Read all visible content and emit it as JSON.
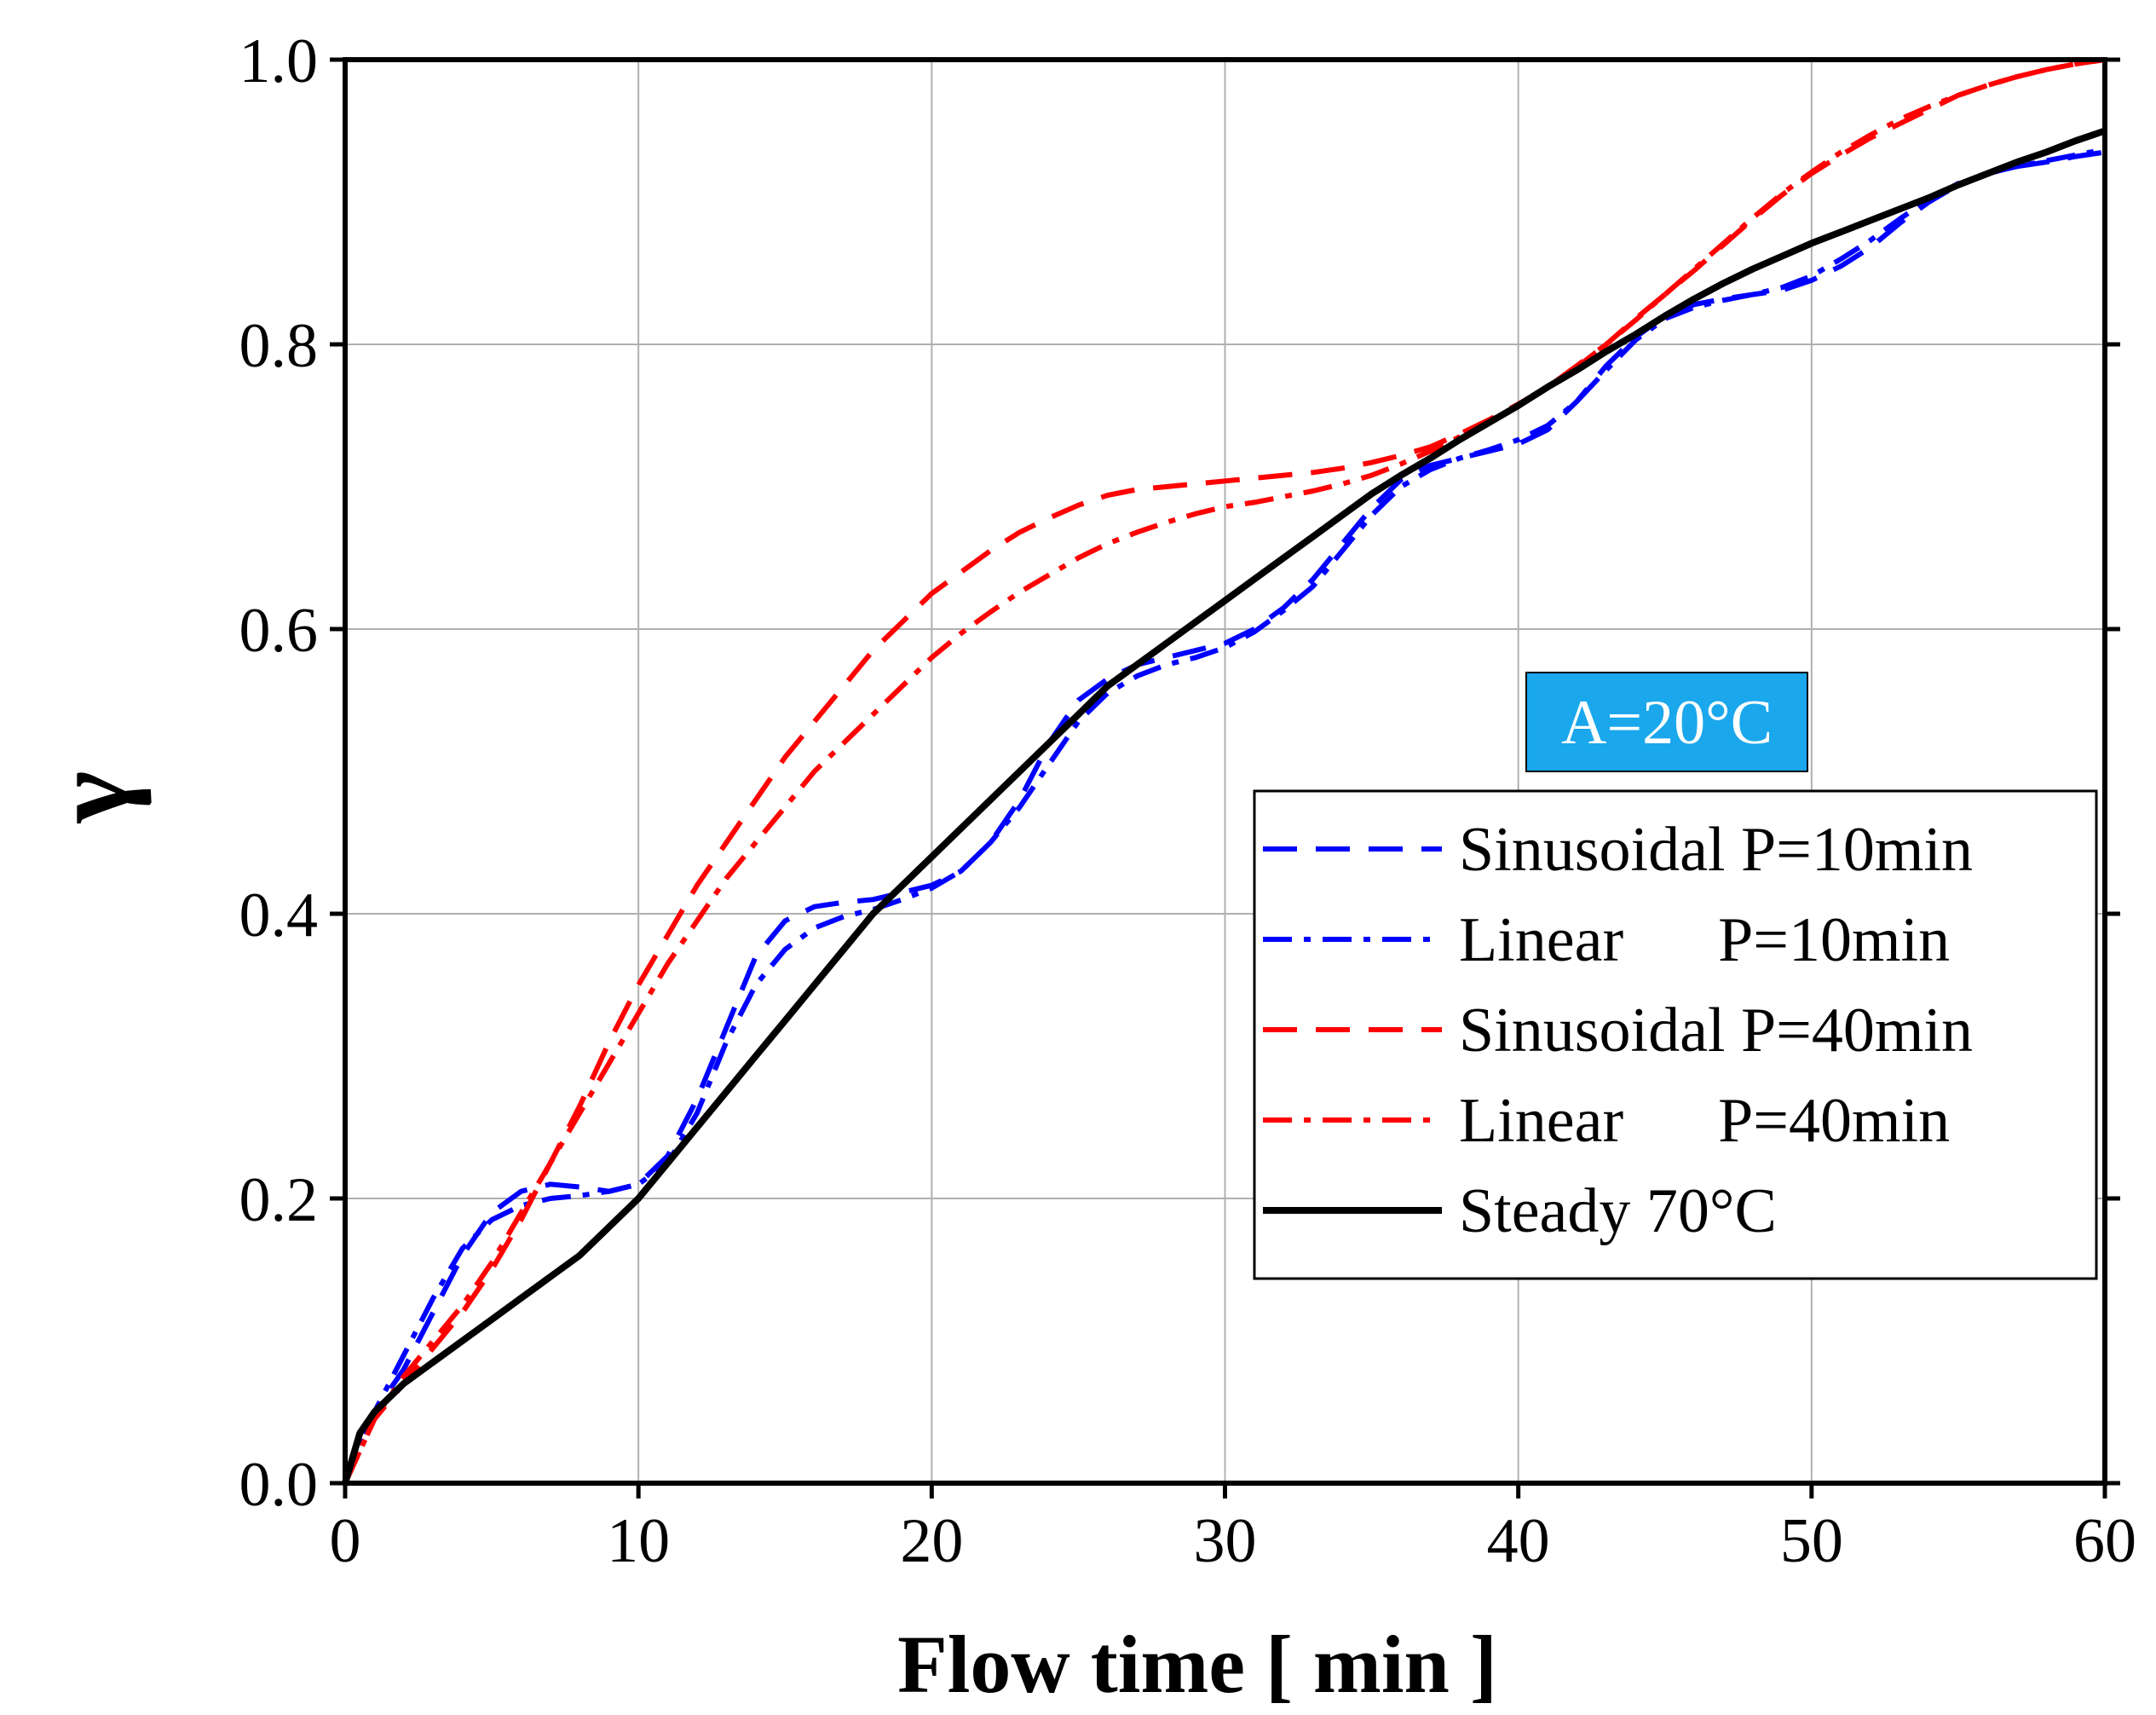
{
  "chart_data": {
    "type": "line",
    "xlabel": "Flow time [ min ]",
    "ylabel": "γ",
    "xlim": [
      0,
      60
    ],
    "ylim": [
      0,
      1.0
    ],
    "x_ticks": [
      "0",
      "10",
      "20",
      "30",
      "40",
      "50",
      "60"
    ],
    "y_ticks": [
      "0.0",
      "0.2",
      "0.4",
      "0.6",
      "0.8",
      "1.0"
    ],
    "grid": true,
    "legend_position": "right",
    "annotation": {
      "text": "A=20°C",
      "background": "#1aa7ec",
      "color": "#ffffff"
    },
    "series": [
      {
        "name": "Sinusoidal P=10min",
        "color": "#0000ff",
        "dash": "dashed",
        "points": [
          [
            0,
            0
          ],
          [
            1,
            0.05
          ],
          [
            2,
            0.08
          ],
          [
            3,
            0.12
          ],
          [
            4,
            0.16
          ],
          [
            5,
            0.19
          ],
          [
            6,
            0.205
          ],
          [
            7,
            0.21
          ],
          [
            8,
            0.208
          ],
          [
            9,
            0.205
          ],
          [
            10,
            0.21
          ],
          [
            11,
            0.23
          ],
          [
            12,
            0.27
          ],
          [
            13,
            0.32
          ],
          [
            14,
            0.37
          ],
          [
            15,
            0.395
          ],
          [
            16,
            0.405
          ],
          [
            17,
            0.408
          ],
          [
            18,
            0.41
          ],
          [
            19,
            0.415
          ],
          [
            20,
            0.42
          ],
          [
            21,
            0.43
          ],
          [
            22,
            0.45
          ],
          [
            23,
            0.48
          ],
          [
            24,
            0.52
          ],
          [
            25,
            0.55
          ],
          [
            26,
            0.565
          ],
          [
            27,
            0.575
          ],
          [
            28,
            0.58
          ],
          [
            29,
            0.585
          ],
          [
            30,
            0.59
          ],
          [
            31,
            0.6
          ],
          [
            32,
            0.615
          ],
          [
            33,
            0.635
          ],
          [
            34,
            0.66
          ],
          [
            35,
            0.685
          ],
          [
            36,
            0.705
          ],
          [
            37,
            0.715
          ],
          [
            38,
            0.72
          ],
          [
            39,
            0.725
          ],
          [
            40,
            0.73
          ],
          [
            41,
            0.74
          ],
          [
            42,
            0.76
          ],
          [
            43,
            0.785
          ],
          [
            44,
            0.805
          ],
          [
            45,
            0.82
          ],
          [
            46,
            0.828
          ],
          [
            47,
            0.832
          ],
          [
            48,
            0.835
          ],
          [
            49,
            0.838
          ],
          [
            50,
            0.845
          ],
          [
            51,
            0.855
          ],
          [
            52,
            0.868
          ],
          [
            53,
            0.885
          ],
          [
            54,
            0.9
          ],
          [
            55,
            0.912
          ],
          [
            56,
            0.92
          ],
          [
            57,
            0.925
          ],
          [
            58,
            0.928
          ],
          [
            59,
            0.932
          ],
          [
            60,
            0.935
          ]
        ]
      },
      {
        "name": "Linear      P=10min",
        "color": "#0000ff",
        "dash": "dashdot",
        "points": [
          [
            0,
            0
          ],
          [
            1,
            0.05
          ],
          [
            2,
            0.09
          ],
          [
            3,
            0.13
          ],
          [
            4,
            0.165
          ],
          [
            5,
            0.185
          ],
          [
            6,
            0.195
          ],
          [
            7,
            0.2
          ],
          [
            8,
            0.202
          ],
          [
            9,
            0.205
          ],
          [
            10,
            0.21
          ],
          [
            11,
            0.225
          ],
          [
            12,
            0.26
          ],
          [
            13,
            0.31
          ],
          [
            14,
            0.35
          ],
          [
            15,
            0.375
          ],
          [
            16,
            0.39
          ],
          [
            17,
            0.398
          ],
          [
            18,
            0.403
          ],
          [
            19,
            0.41
          ],
          [
            20,
            0.418
          ],
          [
            21,
            0.43
          ],
          [
            22,
            0.45
          ],
          [
            23,
            0.475
          ],
          [
            24,
            0.505
          ],
          [
            25,
            0.535
          ],
          [
            26,
            0.555
          ],
          [
            27,
            0.567
          ],
          [
            28,
            0.575
          ],
          [
            29,
            0.58
          ],
          [
            30,
            0.587
          ],
          [
            31,
            0.598
          ],
          [
            32,
            0.613
          ],
          [
            33,
            0.63
          ],
          [
            34,
            0.655
          ],
          [
            35,
            0.68
          ],
          [
            36,
            0.7
          ],
          [
            37,
            0.712
          ],
          [
            38,
            0.72
          ],
          [
            39,
            0.726
          ],
          [
            40,
            0.733
          ],
          [
            41,
            0.743
          ],
          [
            42,
            0.76
          ],
          [
            43,
            0.782
          ],
          [
            44,
            0.803
          ],
          [
            45,
            0.818
          ],
          [
            46,
            0.826
          ],
          [
            47,
            0.831
          ],
          [
            48,
            0.835
          ],
          [
            49,
            0.84
          ],
          [
            50,
            0.848
          ],
          [
            51,
            0.86
          ],
          [
            52,
            0.873
          ],
          [
            53,
            0.888
          ],
          [
            54,
            0.902
          ],
          [
            55,
            0.913
          ],
          [
            56,
            0.92
          ],
          [
            57,
            0.925
          ],
          [
            58,
            0.929
          ],
          [
            59,
            0.933
          ],
          [
            60,
            0.937
          ]
        ]
      },
      {
        "name": "Sinusoidal P=40min",
        "color": "#ff0000",
        "dash": "dashed",
        "points": [
          [
            0,
            0
          ],
          [
            1,
            0.045
          ],
          [
            2,
            0.07
          ],
          [
            3,
            0.095
          ],
          [
            4,
            0.12
          ],
          [
            5,
            0.15
          ],
          [
            6,
            0.185
          ],
          [
            7,
            0.225
          ],
          [
            8,
            0.265
          ],
          [
            9,
            0.31
          ],
          [
            10,
            0.35
          ],
          [
            11,
            0.385
          ],
          [
            12,
            0.42
          ],
          [
            13,
            0.45
          ],
          [
            14,
            0.48
          ],
          [
            15,
            0.51
          ],
          [
            16,
            0.535
          ],
          [
            17,
            0.56
          ],
          [
            18,
            0.585
          ],
          [
            19,
            0.605
          ],
          [
            20,
            0.625
          ],
          [
            21,
            0.64
          ],
          [
            22,
            0.655
          ],
          [
            23,
            0.668
          ],
          [
            24,
            0.678
          ],
          [
            25,
            0.687
          ],
          [
            26,
            0.694
          ],
          [
            27,
            0.698
          ],
          [
            28,
            0.7
          ],
          [
            29,
            0.702
          ],
          [
            30,
            0.704
          ],
          [
            31,
            0.706
          ],
          [
            32,
            0.708
          ],
          [
            33,
            0.71
          ],
          [
            34,
            0.713
          ],
          [
            35,
            0.717
          ],
          [
            36,
            0.722
          ],
          [
            37,
            0.728
          ],
          [
            38,
            0.737
          ],
          [
            39,
            0.747
          ],
          [
            40,
            0.758
          ],
          [
            41,
            0.77
          ],
          [
            42,
            0.785
          ],
          [
            43,
            0.8
          ],
          [
            44,
            0.818
          ],
          [
            45,
            0.835
          ],
          [
            46,
            0.852
          ],
          [
            47,
            0.87
          ],
          [
            48,
            0.888
          ],
          [
            49,
            0.905
          ],
          [
            50,
            0.92
          ],
          [
            51,
            0.933
          ],
          [
            52,
            0.945
          ],
          [
            53,
            0.955
          ],
          [
            54,
            0.965
          ],
          [
            55,
            0.975
          ],
          [
            56,
            0.982
          ],
          [
            57,
            0.988
          ],
          [
            58,
            0.993
          ],
          [
            59,
            0.997
          ],
          [
            60,
            1.0
          ]
        ]
      },
      {
        "name": "Linear      P=40min",
        "color": "#ff0000",
        "dash": "dashdot",
        "points": [
          [
            0,
            0
          ],
          [
            1,
            0.045
          ],
          [
            2,
            0.075
          ],
          [
            3,
            0.1
          ],
          [
            4,
            0.125
          ],
          [
            5,
            0.155
          ],
          [
            6,
            0.19
          ],
          [
            7,
            0.225
          ],
          [
            8,
            0.26
          ],
          [
            9,
            0.295
          ],
          [
            10,
            0.33
          ],
          [
            11,
            0.365
          ],
          [
            12,
            0.395
          ],
          [
            13,
            0.425
          ],
          [
            14,
            0.45
          ],
          [
            15,
            0.475
          ],
          [
            16,
            0.5
          ],
          [
            17,
            0.52
          ],
          [
            18,
            0.54
          ],
          [
            19,
            0.56
          ],
          [
            20,
            0.58
          ],
          [
            21,
            0.597
          ],
          [
            22,
            0.612
          ],
          [
            23,
            0.626
          ],
          [
            24,
            0.638
          ],
          [
            25,
            0.65
          ],
          [
            26,
            0.66
          ],
          [
            27,
            0.668
          ],
          [
            28,
            0.675
          ],
          [
            29,
            0.681
          ],
          [
            30,
            0.686
          ],
          [
            31,
            0.689
          ],
          [
            32,
            0.693
          ],
          [
            33,
            0.697
          ],
          [
            34,
            0.702
          ],
          [
            35,
            0.708
          ],
          [
            36,
            0.716
          ],
          [
            37,
            0.725
          ],
          [
            38,
            0.735
          ],
          [
            39,
            0.746
          ],
          [
            40,
            0.757
          ],
          [
            41,
            0.77
          ],
          [
            42,
            0.784
          ],
          [
            43,
            0.8
          ],
          [
            44,
            0.817
          ],
          [
            45,
            0.835
          ],
          [
            46,
            0.853
          ],
          [
            47,
            0.871
          ],
          [
            48,
            0.889
          ],
          [
            49,
            0.906
          ],
          [
            50,
            0.921
          ],
          [
            51,
            0.935
          ],
          [
            52,
            0.947
          ],
          [
            53,
            0.958
          ],
          [
            54,
            0.967
          ],
          [
            55,
            0.975
          ],
          [
            56,
            0.982
          ],
          [
            57,
            0.988
          ],
          [
            58,
            0.993
          ],
          [
            59,
            0.997
          ],
          [
            60,
            1.0
          ]
        ]
      },
      {
        "name": "Steady 70°C",
        "color": "#000000",
        "dash": "solid",
        "points": [
          [
            0,
            0
          ],
          [
            0.5,
            0.035
          ],
          [
            1,
            0.05
          ],
          [
            2,
            0.07
          ],
          [
            3,
            0.085
          ],
          [
            4,
            0.1
          ],
          [
            5,
            0.115
          ],
          [
            6,
            0.13
          ],
          [
            7,
            0.145
          ],
          [
            8,
            0.16
          ],
          [
            9,
            0.18
          ],
          [
            10,
            0.2
          ],
          [
            11,
            0.225
          ],
          [
            12,
            0.25
          ],
          [
            13,
            0.275
          ],
          [
            14,
            0.3
          ],
          [
            15,
            0.325
          ],
          [
            16,
            0.35
          ],
          [
            17,
            0.375
          ],
          [
            18,
            0.4
          ],
          [
            19,
            0.42
          ],
          [
            20,
            0.44
          ],
          [
            21,
            0.46
          ],
          [
            22,
            0.48
          ],
          [
            23,
            0.5
          ],
          [
            24,
            0.52
          ],
          [
            25,
            0.54
          ],
          [
            26,
            0.56
          ],
          [
            27,
            0.575
          ],
          [
            28,
            0.59
          ],
          [
            29,
            0.605
          ],
          [
            30,
            0.62
          ],
          [
            31,
            0.635
          ],
          [
            32,
            0.65
          ],
          [
            33,
            0.665
          ],
          [
            34,
            0.68
          ],
          [
            35,
            0.695
          ],
          [
            36,
            0.708
          ],
          [
            37,
            0.72
          ],
          [
            38,
            0.733
          ],
          [
            39,
            0.745
          ],
          [
            40,
            0.757
          ],
          [
            41,
            0.77
          ],
          [
            42,
            0.782
          ],
          [
            43,
            0.795
          ],
          [
            44,
            0.807
          ],
          [
            45,
            0.82
          ],
          [
            46,
            0.832
          ],
          [
            47,
            0.843
          ],
          [
            48,
            0.853
          ],
          [
            49,
            0.862
          ],
          [
            50,
            0.871
          ],
          [
            51,
            0.879
          ],
          [
            52,
            0.887
          ],
          [
            53,
            0.895
          ],
          [
            54,
            0.903
          ],
          [
            55,
            0.912
          ],
          [
            56,
            0.92
          ],
          [
            57,
            0.928
          ],
          [
            58,
            0.935
          ],
          [
            59,
            0.943
          ],
          [
            60,
            0.95
          ]
        ]
      }
    ]
  }
}
